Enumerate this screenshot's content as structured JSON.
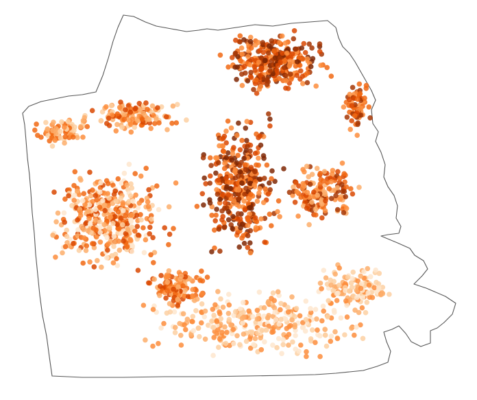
{
  "map": {
    "region": "city-boundary",
    "boundary_stroke": "#555555",
    "background": "#ffffff",
    "color_scale": {
      "name": "Oranges",
      "stops": [
        "#fee6ce",
        "#fdd0a2",
        "#fdae6b",
        "#fd8d3c",
        "#f16913",
        "#d94801",
        "#a63603",
        "#7f2704"
      ]
    },
    "point_opacity": 0.85
  }
}
